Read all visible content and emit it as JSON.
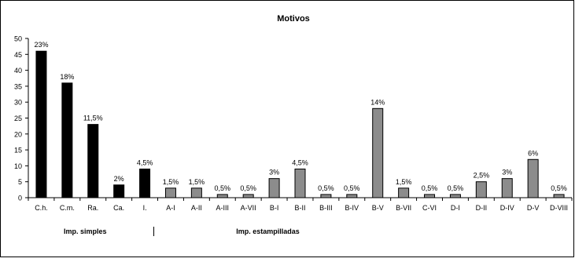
{
  "chart_data": {
    "type": "bar",
    "title": "Motivos",
    "ylim": [
      0,
      50
    ],
    "yticks": [
      0,
      5,
      10,
      15,
      20,
      25,
      30,
      35,
      40,
      45,
      50
    ],
    "grid": false,
    "legend": "none",
    "categories": [
      "C.h.",
      "C.m.",
      "Ra.",
      "Ca.",
      "I.",
      "A-I",
      "A-II",
      "A-III",
      "A-VII",
      "B-I",
      "B-II",
      "B-III",
      "B-IV",
      "B-V",
      "B-VII",
      "C-VI",
      "D-I",
      "D-II",
      "D-IV",
      "D-V",
      "D-VIII"
    ],
    "values": [
      46,
      36,
      23,
      4,
      9,
      3,
      3,
      1,
      1,
      6,
      9,
      1,
      1,
      28,
      3,
      1,
      1,
      5,
      6,
      12,
      1
    ],
    "data_labels": [
      "23%",
      "18%",
      "11,5%",
      "2%",
      "4,5%",
      "1,5%",
      "1,5%",
      "0,5%",
      "0,5%",
      "3%",
      "4,5%",
      "0,5%",
      "0,5%",
      "14%",
      "1,5%",
      "0,5%",
      "0,5%",
      "2,5%",
      "3%",
      "6%",
      "0,5%"
    ],
    "groups": [
      {
        "label": "Imp. simples",
        "color": "#000000",
        "count": 5
      },
      {
        "label": "Imp. estampilladas",
        "color": "#8c8c8c",
        "count": 16
      }
    ]
  }
}
